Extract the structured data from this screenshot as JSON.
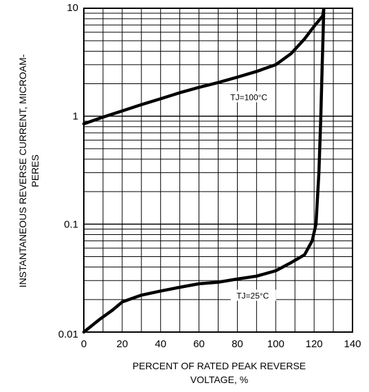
{
  "chart_data": {
    "type": "line",
    "title": "",
    "xlabel": [
      "PERCENT OF RATED PEAK REVERSE",
      "VOLTAGE, %"
    ],
    "ylabel": [
      "INSTANTANEOUS REVERSE CURRENT, MICROAM-",
      "PERES"
    ],
    "xlim": [
      0,
      140
    ],
    "ylim": [
      0.01,
      10
    ],
    "yscale": "log",
    "grid": true,
    "x_ticks": [
      0,
      20,
      40,
      60,
      80,
      100,
      120,
      140
    ],
    "x_tick_labels": [
      "0",
      "20",
      "40",
      "60",
      "80",
      "100",
      "120",
      "140"
    ],
    "y_ticks": [
      0.01,
      0.1,
      1,
      10
    ],
    "y_tick_labels": [
      "0.01",
      "0.1",
      "1",
      "10"
    ],
    "series": [
      {
        "x": [
          0,
          10,
          20,
          30,
          40,
          50,
          60,
          70,
          80,
          90,
          100,
          108,
          115,
          120,
          124.5,
          125
        ],
        "y": [
          0.85,
          0.98,
          1.12,
          1.28,
          1.45,
          1.65,
          1.85,
          2.05,
          2.3,
          2.6,
          3.0,
          3.8,
          5.2,
          6.8,
          8.5,
          9.8
        ]
      },
      {
        "x": [
          0,
          8,
          15,
          20,
          30,
          40,
          50,
          60,
          70,
          80,
          90,
          100,
          108,
          115,
          119,
          121,
          122.5,
          123.5,
          124.2,
          124.7,
          125
        ],
        "y": [
          0.01,
          0.013,
          0.016,
          0.019,
          0.022,
          0.024,
          0.026,
          0.028,
          0.029,
          0.031,
          0.033,
          0.037,
          0.044,
          0.052,
          0.07,
          0.1,
          0.3,
          1.0,
          3.0,
          6.0,
          9.8
        ]
      }
    ],
    "annotations": [
      {
        "text": "TJ=100°C",
        "x": 86,
        "y": 1.45
      },
      {
        "text": "TJ=25°C",
        "x": 88,
        "y": 0.021
      }
    ],
    "colors": {
      "line": "#000000",
      "grid": "#000000",
      "background": "#ffffff"
    }
  }
}
